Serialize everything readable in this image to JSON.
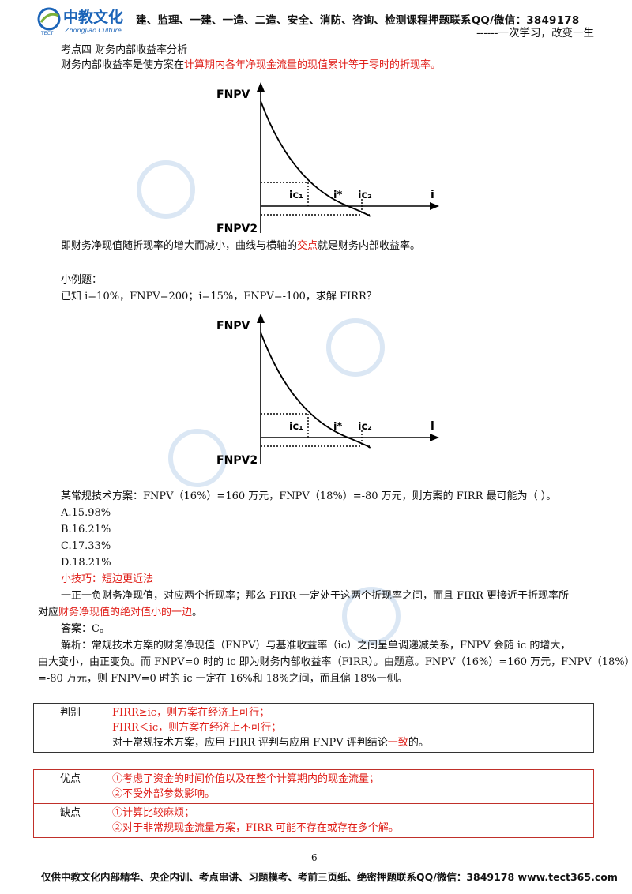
{
  "header": {
    "logo_main": "中教文化",
    "logo_sub": "ZhongJiao Culture",
    "logo_tect": "TECT",
    "notice": "建、监理、一建、一造、二造、安全、消防、咨询、检测课程押题联系QQ/微信：3849178",
    "motto": "------一次学习，改变一生"
  },
  "section": {
    "title": "考点四  财务内部收益率分析",
    "definition_prefix": "财务内部收益率是使方案在",
    "definition_red": "计算期内各年净现金流量的现值累计等于零时的折现率。",
    "chart_note_prefix": "即财务净现值随折现率的增大而减小，曲线与横轴的",
    "chart_note_red": "交点",
    "chart_note_suffix": "就是财务内部收益率。"
  },
  "chart_labels": {
    "fnpv": "FNPV",
    "fnpv2": "FNPV2",
    "ic1": "ic₁",
    "istar": "i*",
    "ic2": "ic₂",
    "i": "i"
  },
  "chart_data": [
    {
      "type": "line",
      "title": "",
      "xlabel": "i",
      "ylabel": "FNPV",
      "annotations": [
        "ic₁",
        "i*",
        "ic₂",
        "FNPV2"
      ],
      "grid": false
    },
    {
      "type": "line",
      "title": "",
      "xlabel": "i",
      "ylabel": "FNPV",
      "annotations": [
        "ic₁",
        "i*",
        "ic₂",
        "FNPV2"
      ],
      "grid": false
    }
  ],
  "example": {
    "heading": "小例题：",
    "given": "已知 i=10%，FNPV=200；i=15%，FNPV=-100，求解 FIRR？",
    "question": "某常规技术方案：FNPV（16%）=160 万元，FNPV（18%）=-80 万元，则方案的 FIRR 最可能为（  ）。",
    "options": [
      "A.15.98%",
      "B.16.21%",
      "C.17.33%",
      "D.18.21%"
    ],
    "tip": "小技巧：短边更近法",
    "tip_text1": "一正一负财务净现值，对应两个折现率；那么 FIRR 一定处于这两个折现率之间，而且 FIRR 更接近于折现率所",
    "tip_text2_prefix": "对应",
    "tip_text2_red": "财务净现值的绝对值小的一边",
    "tip_text2_suffix": "。",
    "answer": "答案：C。",
    "analysis1": "解析：常规技术方案的财务净现值（FNPV）与基准收益率（ic）之间呈单调递减关系，FNPV 会随 ic 的增大，",
    "analysis2": "由大变小，由正变负。而 FNPV=0 时的 ic 即为财务内部收益率（FIRR）。由题意。FNPV（16%）=160 万元，FNPV（18%）",
    "analysis3": "=-80 万元，则 FNPV=0 时的 ic 一定在 16%和 18%之间，而且偏 18%一侧。"
  },
  "judge_table": {
    "label": "判别",
    "row1_prefix": "FIRR≥ic，则方案在经济上",
    "row1_red": "可行；",
    "row2_prefix": "FIRR＜ic，则方案在经济上",
    "row2_red": "不可行；",
    "row3_prefix": "对于常规技术方案，应用 FIRR 评判与应用 FNPV 评判结论",
    "row3_red": "一致",
    "row3_suffix": "的。"
  },
  "pros_table": {
    "pros_label": "优点",
    "pros": [
      "①考虑了资金的时间价值以及在整个计算期内的现金流量；",
      "②不受外部参数影响。"
    ],
    "cons_label": "缺点",
    "cons": [
      "①计算比较麻烦；",
      "②对于非常规现金流量方案，FIRR 可能不存在或存在多个解。"
    ]
  },
  "footer": {
    "page": "6",
    "text": "仅供中教文化内部精华、央企内训、考点串讲、习题模考、考前三页纸、绝密押题联系QQ/微信：3849178 www.tect365.com"
  },
  "colors": {
    "accent_red": "#e0201a",
    "logo_blue": "#1b64b8"
  }
}
